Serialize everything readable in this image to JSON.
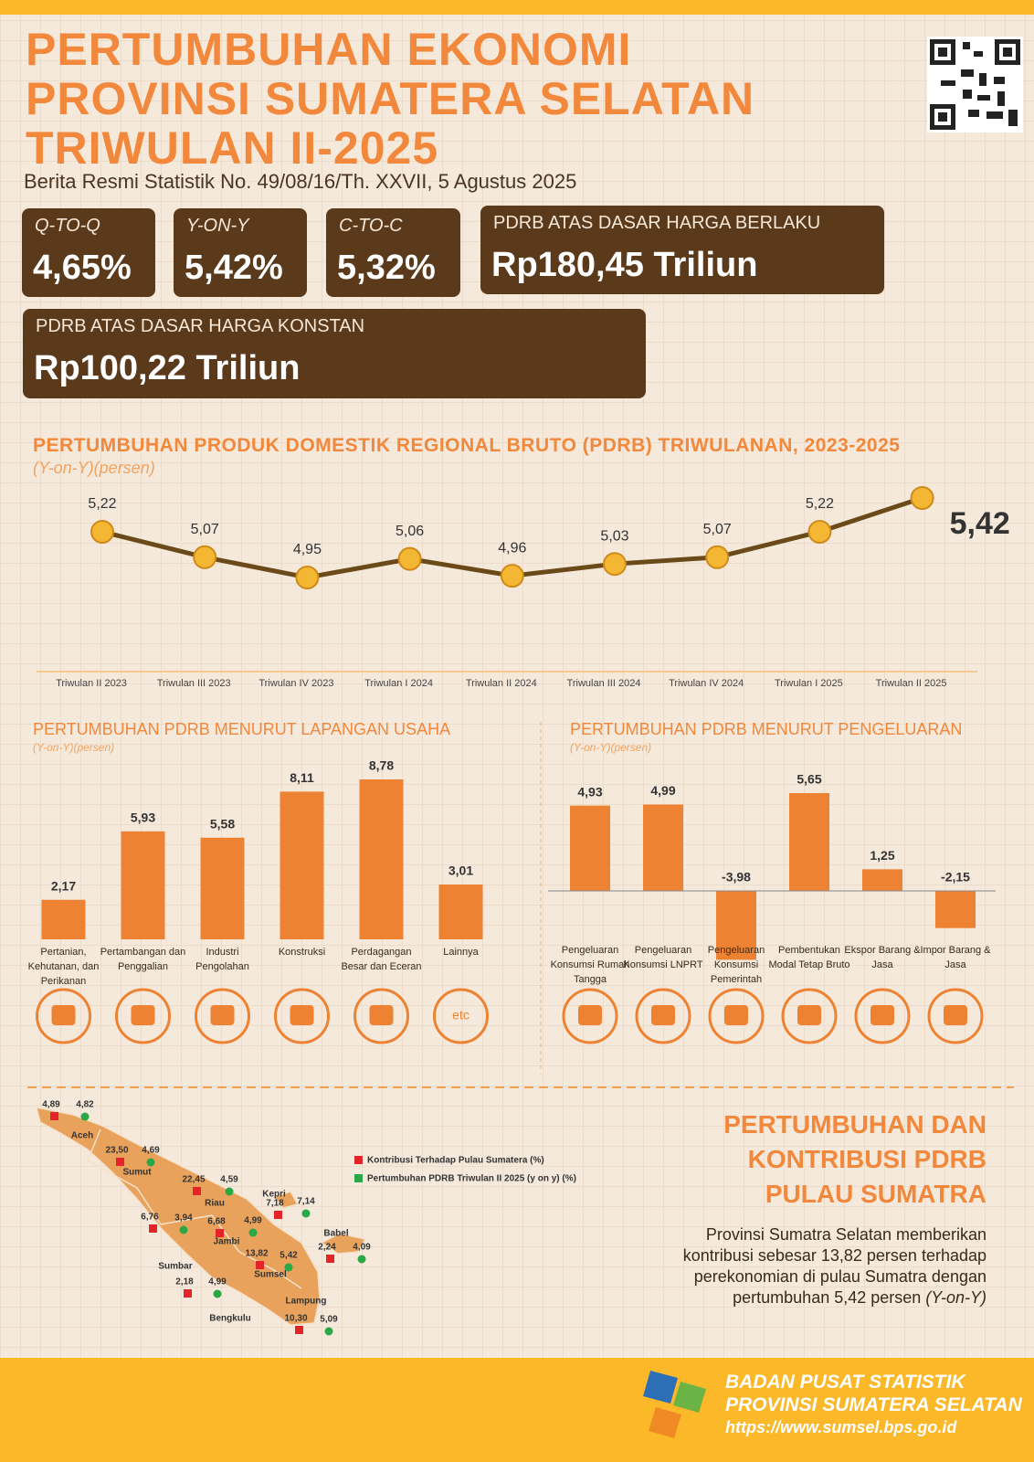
{
  "header": {
    "title_lines": [
      "PERTUMBUHAN EKONOMI",
      "PROVINSI SUMATERA SELATAN",
      "TRIWULAN II-2025"
    ],
    "subtitle": "Berita Resmi Statistik No. 49/08/16/Th. XXVII, 5 Agustus 2025"
  },
  "stats": [
    {
      "label": "Q-TO-Q",
      "value": "4,65%"
    },
    {
      "label": "Y-ON-Y",
      "value": "5,42%"
    },
    {
      "label": "C-TO-C",
      "value": "5,32%"
    },
    {
      "label": "PDRB ATAS DASAR HARGA BERLAKU",
      "value": "Rp180,45 Triliun"
    },
    {
      "label": "PDRB ATAS DASAR HARGA KONSTAN",
      "value": "Rp100,22 Triliun"
    }
  ],
  "chart_data": [
    {
      "type": "line",
      "title": "PERTUMBUHAN PRODUK DOMESTIK REGIONAL BRUTO (PDRB) TRIWULANAN, 2023-2025",
      "subtitle": "(Y-on-Y)(persen)",
      "color": "#6b4a1a",
      "categories": [
        "Triwulan II 2023",
        "Triwulan III 2023",
        "Triwulan IV 2023",
        "Triwulan I 2024",
        "Triwulan II 2024",
        "Triwulan III 2024",
        "Triwulan IV 2024",
        "Triwulan I 2025",
        "Triwulan II 2025"
      ],
      "values": [
        5.22,
        5.07,
        4.95,
        5.06,
        4.96,
        5.03,
        5.07,
        5.22,
        5.42
      ],
      "value_labels": [
        "5,22",
        "5,07",
        "4,95",
        "5,06",
        "4,96",
        "5,03",
        "5,07",
        "5,22",
        "5,42"
      ]
    },
    {
      "type": "bar",
      "title": "PERTUMBUHAN PDRB MENURUT LAPANGAN USAHA",
      "subtitle": "(Y-on-Y)(persen)",
      "color": "#ee8233",
      "categories": [
        "Pertanian, Kehutanan, dan Perikanan",
        "Pertambangan dan Penggalian",
        "Industri Pengolahan",
        "Konstruksi",
        "Perdagangan Besar dan Eceran",
        "Lainnya"
      ],
      "values": [
        2.17,
        5.93,
        5.58,
        8.11,
        8.78,
        3.01
      ],
      "value_labels": [
        "2,17",
        "5,93",
        "5,58",
        "8,11",
        "8,78",
        "3,01"
      ]
    },
    {
      "type": "bar",
      "title": "PERTUMBUHAN PDRB MENURUT PENGELUARAN",
      "subtitle": "(Y-on-Y)(persen)",
      "color": "#ee8233",
      "categories": [
        "Pengeluaran Konsumsi Rumah Tangga",
        "Pengeluaran Konsumsi LNPRT",
        "Pengeluaran Konsumsi Pemerintah",
        "Pembentukan Modal Tetap Bruto",
        "Ekspor Barang & Jasa",
        "Impor Barang & Jasa"
      ],
      "values": [
        4.93,
        4.99,
        -3.98,
        5.65,
        1.25,
        -2.15
      ],
      "value_labels": [
        "4,93",
        "4,99",
        "-3,98",
        "5,65",
        "1,25",
        "-2,15"
      ]
    }
  ],
  "etc_icon": "etc",
  "map": {
    "title_lines": [
      "PERTUMBUHAN DAN",
      "KONTRIBUSI PDRB",
      "PULAU SUMATRA"
    ],
    "legend": [
      {
        "label": "Kontribusi Terhadap Pulau Sumatera (%)",
        "color": "#e5242a"
      },
      {
        "label": "Pertumbuhan PDRB Triwulan II 2025 (y on y) (%)",
        "color": "#2aa845"
      }
    ],
    "provinces": [
      {
        "name": "Aceh",
        "contribution": "4,89",
        "growth": "4,82"
      },
      {
        "name": "Sumut",
        "contribution": "23,50",
        "growth": "4,69"
      },
      {
        "name": "Riau",
        "contribution": "22,45",
        "growth": "4,59"
      },
      {
        "name": "Kepri",
        "contribution": "7,18",
        "growth": "7,14"
      },
      {
        "name": "Sumbar",
        "contribution": "6,76",
        "growth": "3,94"
      },
      {
        "name": "Jambi",
        "contribution": "6,68",
        "growth": "4,99"
      },
      {
        "name": "Babel",
        "contribution": "2,24",
        "growth": "4,09"
      },
      {
        "name": "Sumsel",
        "contribution": "13,82",
        "growth": "5,42"
      },
      {
        "name": "Bengkulu",
        "contribution": "2,18",
        "growth": "4,99"
      },
      {
        "name": "Lampung",
        "contribution": "10,30",
        "growth": "5,09"
      }
    ],
    "text": "Provinsi Sumatra Selatan memberikan kontribusi sebesar 13,82 persen terhadap perekonomian di pulau Sumatra dengan pertumbuhan 5,42 persen",
    "text_note": "(Y-on-Y)"
  },
  "footer": {
    "org": "BADAN PUSAT STATISTIK",
    "region": "PROVINSI SUMATERA SELATAN",
    "url": "https://www.sumsel.bps.go.id"
  }
}
